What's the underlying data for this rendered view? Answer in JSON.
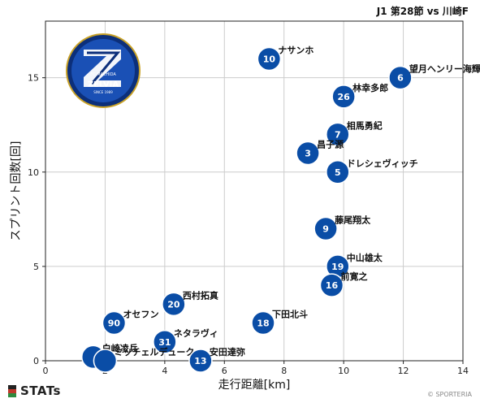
{
  "header": {
    "match": "J1 第28節 vs 川崎F"
  },
  "footer": {
    "brand": "STATs",
    "credit": "© SPORTERIA"
  },
  "colors": {
    "point": "#0a4da6",
    "point_stroke": "#ffffff",
    "grid": "#cccccc",
    "brand_red": "#c0392b",
    "brand_green": "#2e8b3e",
    "brand_dark": "#222222"
  },
  "logo": {
    "name": "FC Machida Zelvia crest",
    "text_top": "FC MACHIDA",
    "text_main": "ZELVIA",
    "text_bottom": "SINCE 1989"
  },
  "chart_data": {
    "type": "scatter",
    "xlabel": "走行距離[km]",
    "ylabel": "スプリント回数[回]",
    "xlim": [
      0,
      14
    ],
    "ylim": [
      0,
      18
    ],
    "xticks": [
      0,
      2,
      4,
      6,
      8,
      10,
      12,
      14
    ],
    "yticks": [
      0,
      5,
      10,
      15
    ],
    "grid": true,
    "points": [
      {
        "number": "10",
        "name": "ナサンホ",
        "x": 7.5,
        "y": 16
      },
      {
        "number": "6",
        "name": "望月ヘンリー海輝",
        "x": 11.9,
        "y": 15
      },
      {
        "number": "26",
        "name": "林幸多郎",
        "x": 10.0,
        "y": 14
      },
      {
        "number": "7",
        "name": "相馬勇紀",
        "x": 9.8,
        "y": 12
      },
      {
        "number": "3",
        "name": "昌子源",
        "x": 8.8,
        "y": 11
      },
      {
        "number": "5",
        "name": "ドレシェヴィッチ",
        "x": 9.8,
        "y": 10
      },
      {
        "number": "9",
        "name": "藤尾翔太",
        "x": 9.4,
        "y": 7
      },
      {
        "number": "19",
        "name": "中山雄太",
        "x": 9.8,
        "y": 5
      },
      {
        "number": "16",
        "name": "前寛之",
        "x": 9.6,
        "y": 4
      },
      {
        "number": "20",
        "name": "西村拓真",
        "x": 4.3,
        "y": 3
      },
      {
        "number": "90",
        "name": "オセフン",
        "x": 2.3,
        "y": 2
      },
      {
        "number": "18",
        "name": "下田北斗",
        "x": 7.3,
        "y": 2
      },
      {
        "number": "31",
        "name": "ネタラヴィ",
        "x": 4.0,
        "y": 1
      },
      {
        "number": "",
        "name": "白崎凌兵",
        "x": 1.6,
        "y": 0.2
      },
      {
        "number": "",
        "name": "ミッチェルデューク",
        "x": 2.0,
        "y": 0
      },
      {
        "number": "13",
        "name": "安田達弥",
        "x": 5.2,
        "y": 0
      }
    ]
  }
}
